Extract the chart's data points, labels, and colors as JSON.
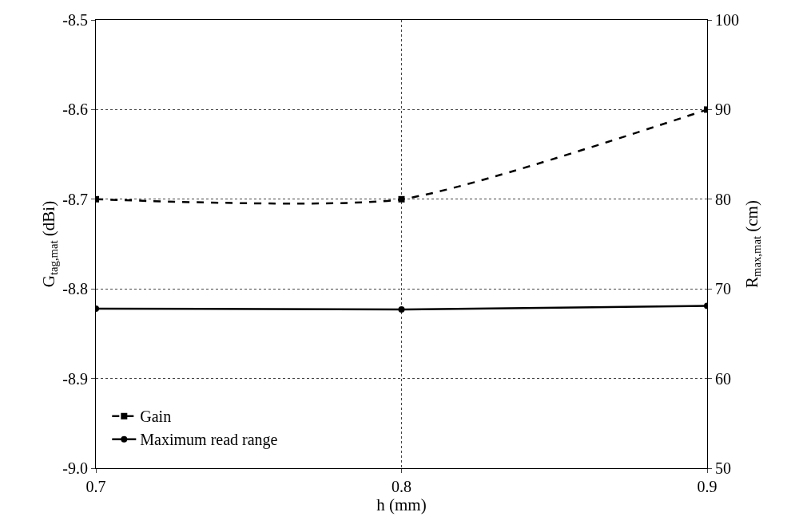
{
  "chart_data": {
    "type": "line",
    "xlabel": "h (mm)",
    "ylabel": "G$_{tag,mat}$ (dBi)",
    "y2label": "R$_{max,mat}$ (cm)",
    "x": [
      0.7,
      0.8,
      0.9
    ],
    "xlim": [
      0.7,
      0.9
    ],
    "xticks": [
      0.7,
      0.8,
      0.9
    ],
    "ylim": [
      -9.0,
      -8.5
    ],
    "yticks": [
      {
        "value": -9.0,
        "label": "-9.0"
      },
      -8.9,
      -8.8,
      -8.7,
      -8.6,
      -8.5
    ],
    "y2lim": [
      50,
      100
    ],
    "y2ticks": [
      50,
      60,
      70,
      80,
      90,
      100
    ],
    "series": [
      {
        "name": "Gain",
        "color": "#000000",
        "values": [
          -8.7,
          -8.7,
          -8.6
        ],
        "marker": "square",
        "line_style": "dashed"
      },
      {
        "name": "Maximum read range",
        "color": "#000000",
        "values": [
          67.8,
          67.7,
          68.1
        ],
        "axis": "y2",
        "marker": "circle",
        "line_style": "solid"
      }
    ],
    "grid": true,
    "legend": "bottom left"
  }
}
